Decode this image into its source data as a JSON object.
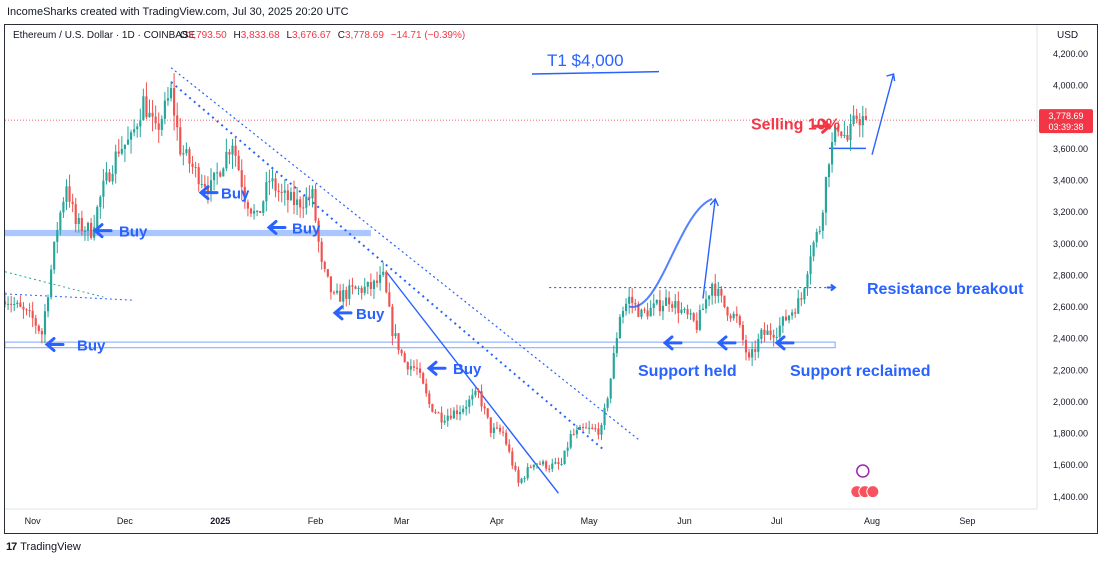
{
  "header": {
    "attribution": "IncomeSharks created with TradingView.com, Jul 30, 2025 20:20 UTC"
  },
  "footer": {
    "brand": "TradingView",
    "logo_icon": "tradingview-logo-icon"
  },
  "chart_data": {
    "type": "candlestick",
    "symbol_line": {
      "name": "Ethereum / U.S. Dollar · 1D · COINBASE",
      "o_label": "O",
      "o_value": "3,793.50",
      "h_label": "H",
      "h_value": "3,833.68",
      "l_label": "L",
      "l_value": "3,676.67",
      "c_label": "C",
      "c_value": "3,778.69",
      "change": "−14.71 (−0.39%)"
    },
    "currency": "USD",
    "ylim": [
      1320,
      4380
    ],
    "y_ticks": [
      "1,400.00",
      "1,600.00",
      "1,800.00",
      "2,000.00",
      "2,200.00",
      "2,400.00",
      "2,600.00",
      "2,800.00",
      "3,000.00",
      "3,200.00",
      "3,400.00",
      "3,600.00",
      "3,800.00",
      "4,000.00",
      "4,200.00"
    ],
    "y_tick_values": [
      1400,
      1600,
      1800,
      2000,
      2200,
      2400,
      2600,
      2800,
      3000,
      3200,
      3400,
      3600,
      3800,
      4000,
      4200
    ],
    "x_range": [
      "2024-10-23",
      "2025-09-23"
    ],
    "x_ticks": [
      {
        "label": "Nov",
        "date": "2024-11-01"
      },
      {
        "label": "Dec",
        "date": "2024-12-01"
      },
      {
        "label": "2025",
        "date": "2025-01-01"
      },
      {
        "label": "Feb",
        "date": "2025-02-01"
      },
      {
        "label": "Mar",
        "date": "2025-03-01"
      },
      {
        "label": "Apr",
        "date": "2025-04-01"
      },
      {
        "label": "May",
        "date": "2025-05-01"
      },
      {
        "label": "Jun",
        "date": "2025-06-01"
      },
      {
        "label": "Jul",
        "date": "2025-07-01"
      },
      {
        "label": "Aug",
        "date": "2025-08-01"
      },
      {
        "label": "Sep",
        "date": "2025-09-01"
      }
    ],
    "price_anchors": [
      {
        "date": "2024-10-23",
        "price": 2660
      },
      {
        "date": "2024-10-28",
        "price": 2580
      },
      {
        "date": "2024-11-01",
        "price": 2520
      },
      {
        "date": "2024-11-04",
        "price": 2430
      },
      {
        "date": "2024-11-06",
        "price": 2700
      },
      {
        "date": "2024-11-09",
        "price": 3100
      },
      {
        "date": "2024-11-12",
        "price": 3380
      },
      {
        "date": "2024-11-15",
        "price": 3120
      },
      {
        "date": "2024-11-20",
        "price": 3080
      },
      {
        "date": "2024-11-24",
        "price": 3350
      },
      {
        "date": "2024-11-29",
        "price": 3600
      },
      {
        "date": "2024-12-03",
        "price": 3650
      },
      {
        "date": "2024-12-07",
        "price": 3900
      },
      {
        "date": "2024-12-11",
        "price": 3700
      },
      {
        "date": "2024-12-16",
        "price": 3950
      },
      {
        "date": "2024-12-19",
        "price": 3600
      },
      {
        "date": "2024-12-24",
        "price": 3450
      },
      {
        "date": "2024-12-29",
        "price": 3350
      },
      {
        "date": "2025-01-05",
        "price": 3650
      },
      {
        "date": "2025-01-09",
        "price": 3300
      },
      {
        "date": "2025-01-13",
        "price": 3150
      },
      {
        "date": "2025-01-17",
        "price": 3400
      },
      {
        "date": "2025-01-21",
        "price": 3300
      },
      {
        "date": "2025-01-26",
        "price": 3250
      },
      {
        "date": "2025-01-31",
        "price": 3300
      },
      {
        "date": "2025-02-03",
        "price": 2850
      },
      {
        "date": "2025-02-07",
        "price": 2650
      },
      {
        "date": "2025-02-13",
        "price": 2700
      },
      {
        "date": "2025-02-19",
        "price": 2720
      },
      {
        "date": "2025-02-23",
        "price": 2780
      },
      {
        "date": "2025-02-26",
        "price": 2450
      },
      {
        "date": "2025-03-02",
        "price": 2250
      },
      {
        "date": "2025-03-06",
        "price": 2200
      },
      {
        "date": "2025-03-10",
        "price": 1980
      },
      {
        "date": "2025-03-14",
        "price": 1900
      },
      {
        "date": "2025-03-20",
        "price": 1950
      },
      {
        "date": "2025-03-26",
        "price": 2050
      },
      {
        "date": "2025-03-30",
        "price": 1820
      },
      {
        "date": "2025-04-03",
        "price": 1800
      },
      {
        "date": "2025-04-08",
        "price": 1480
      },
      {
        "date": "2025-04-13",
        "price": 1620
      },
      {
        "date": "2025-04-18",
        "price": 1590
      },
      {
        "date": "2025-04-22",
        "price": 1600
      },
      {
        "date": "2025-04-25",
        "price": 1780
      },
      {
        "date": "2025-04-29",
        "price": 1820
      },
      {
        "date": "2025-05-05",
        "price": 1820
      },
      {
        "date": "2025-05-08",
        "price": 2150
      },
      {
        "date": "2025-05-11",
        "price": 2550
      },
      {
        "date": "2025-05-14",
        "price": 2650
      },
      {
        "date": "2025-05-18",
        "price": 2550
      },
      {
        "date": "2025-05-23",
        "price": 2600
      },
      {
        "date": "2025-05-27",
        "price": 2650
      },
      {
        "date": "2025-06-01",
        "price": 2550
      },
      {
        "date": "2025-06-05",
        "price": 2480
      },
      {
        "date": "2025-06-10",
        "price": 2750
      },
      {
        "date": "2025-06-14",
        "price": 2600
      },
      {
        "date": "2025-06-18",
        "price": 2520
      },
      {
        "date": "2025-06-22",
        "price": 2250
      },
      {
        "date": "2025-06-26",
        "price": 2420
      },
      {
        "date": "2025-07-01",
        "price": 2450
      },
      {
        "date": "2025-07-05",
        "price": 2550
      },
      {
        "date": "2025-07-09",
        "price": 2650
      },
      {
        "date": "2025-07-12",
        "price": 2950
      },
      {
        "date": "2025-07-15",
        "price": 3100
      },
      {
        "date": "2025-07-18",
        "price": 3550
      },
      {
        "date": "2025-07-21",
        "price": 3750
      },
      {
        "date": "2025-07-24",
        "price": 3650
      },
      {
        "date": "2025-07-27",
        "price": 3800
      },
      {
        "date": "2025-07-30",
        "price": 3778.69
      }
    ],
    "current_price": {
      "value": "3,778.69",
      "countdown": "03:39:38",
      "price": 3778.69
    },
    "annotations": {
      "target": "T1 $4,000",
      "selling": "Selling 10%",
      "buy_labels": [
        "Buy",
        "Buy",
        "Buy",
        "Buy",
        "Buy",
        "Buy"
      ],
      "resistance_breakout": "Resistance breakout",
      "support_held": "Support held",
      "support_reclaimed": "Support reclaimed"
    },
    "grid": false,
    "colors": {
      "up": "#26a69a",
      "down": "#ef5350",
      "annotation": "#2962ff",
      "selling": "#f23645",
      "price_line": "#f23645"
    }
  }
}
